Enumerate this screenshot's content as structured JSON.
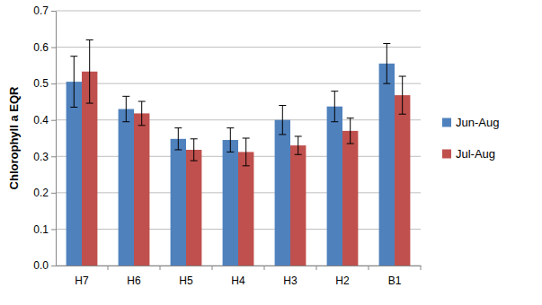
{
  "chart_data": {
    "type": "bar",
    "y_label": "Chlorophyll a EQR",
    "categories": [
      "H7",
      "H6",
      "H5",
      "H4",
      "H3",
      "H2",
      "B1"
    ],
    "series": [
      {
        "name": "Jun-Aug",
        "color": "#4f81bd",
        "values": [
          0.505,
          0.43,
          0.348,
          0.345,
          0.4,
          0.437,
          0.555
        ],
        "errors": [
          0.07,
          0.035,
          0.03,
          0.033,
          0.04,
          0.042,
          0.055
        ]
      },
      {
        "name": "Jul-Aug",
        "color": "#c0504d",
        "values": [
          0.533,
          0.418,
          0.318,
          0.312,
          0.33,
          0.37,
          0.468
        ],
        "errors": [
          0.087,
          0.033,
          0.03,
          0.038,
          0.025,
          0.035,
          0.052
        ]
      }
    ],
    "ylim": [
      0,
      0.7
    ],
    "yticks": [
      {
        "value": 0,
        "label": "0.0"
      },
      0.1,
      0.2,
      0.3,
      0.4,
      0.5,
      0.6,
      0.7
    ],
    "grid": true,
    "legend": "right"
  }
}
